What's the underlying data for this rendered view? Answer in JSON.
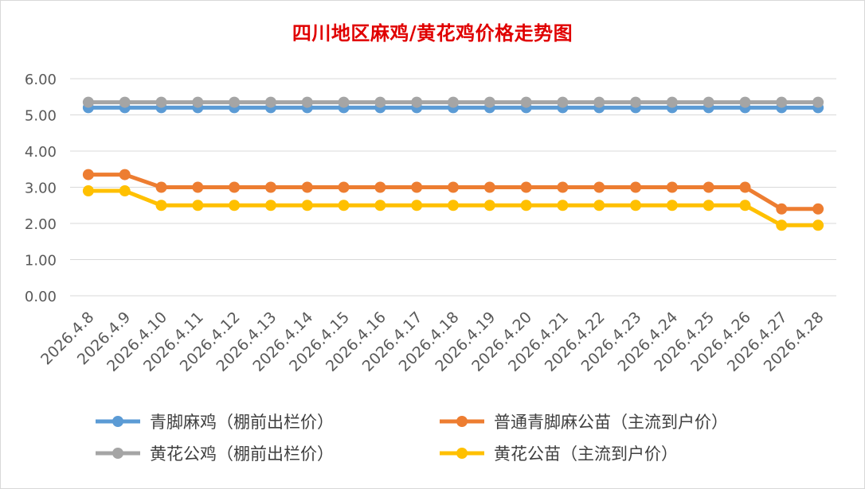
{
  "chart_data": {
    "type": "line",
    "title": "四川地区麻鸡/黄花鸡价格走势图",
    "xlabel": "",
    "ylabel": "",
    "ylim": [
      0,
      6
    ],
    "yticks": [
      "0.00",
      "1.00",
      "2.00",
      "3.00",
      "4.00",
      "5.00",
      "6.00"
    ],
    "grid": true,
    "legend_position": "bottom",
    "categories": [
      "2026.4.8",
      "2026.4.9",
      "2026.4.10",
      "2026.4.11",
      "2026.4.12",
      "2026.4.13",
      "2026.4.14",
      "2026.4.15",
      "2026.4.16",
      "2026.4.17",
      "2026.4.18",
      "2026.4.19",
      "2026.4.20",
      "2026.4.21",
      "2026.4.22",
      "2026.4.23",
      "2026.4.24",
      "2026.4.25",
      "2026.4.26",
      "2026.4.27",
      "2026.4.28"
    ],
    "series": [
      {
        "name": "青脚麻鸡（棚前出栏价）",
        "color": "#5b9bd5",
        "values": [
          5.2,
          5.2,
          5.2,
          5.2,
          5.2,
          5.2,
          5.2,
          5.2,
          5.2,
          5.2,
          5.2,
          5.2,
          5.2,
          5.2,
          5.2,
          5.2,
          5.2,
          5.2,
          5.2,
          5.2,
          5.2
        ]
      },
      {
        "name": "普通青脚麻公苗（主流到户价）",
        "color": "#ed7d31",
        "values": [
          3.35,
          3.35,
          3.0,
          3.0,
          3.0,
          3.0,
          3.0,
          3.0,
          3.0,
          3.0,
          3.0,
          3.0,
          3.0,
          3.0,
          3.0,
          3.0,
          3.0,
          3.0,
          3.0,
          2.4,
          2.4
        ]
      },
      {
        "name": "黄花公鸡（棚前出栏价）",
        "color": "#a5a5a5",
        "values": [
          5.35,
          5.35,
          5.35,
          5.35,
          5.35,
          5.35,
          5.35,
          5.35,
          5.35,
          5.35,
          5.35,
          5.35,
          5.35,
          5.35,
          5.35,
          5.35,
          5.35,
          5.35,
          5.35,
          5.35,
          5.35
        ]
      },
      {
        "name": "黄花公苗（主流到户价）",
        "color": "#ffc000",
        "values": [
          2.9,
          2.9,
          2.5,
          2.5,
          2.5,
          2.5,
          2.5,
          2.5,
          2.5,
          2.5,
          2.5,
          2.5,
          2.5,
          2.5,
          2.5,
          2.5,
          2.5,
          2.5,
          2.5,
          1.95,
          1.95
        ]
      }
    ]
  }
}
